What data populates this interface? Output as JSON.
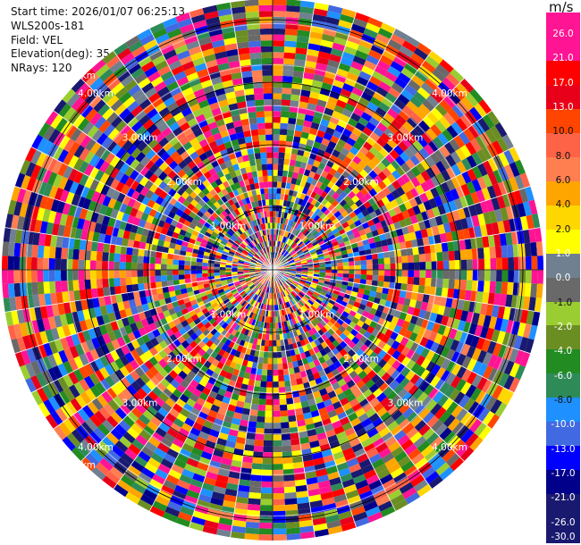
{
  "info": {
    "start_time": "Start time: 2026/01/07 06:25:13",
    "instrument": "WLS200s-181",
    "field": "Field: VEL",
    "elevation": "Elevation(deg): 35.00",
    "nrays": "NRays: 120"
  },
  "chart_data": {
    "type": "heatmap",
    "projection": "polar",
    "field": "VEL",
    "unit": "m/s",
    "n_rays": 120,
    "elevation_deg": 35.0,
    "range_ring_labels": [
      "1.00km",
      "2.00km",
      "3.00km",
      "4.00km",
      "5.00km"
    ],
    "colorbar": {
      "ticks": [
        "26.0",
        "21.0",
        "17.0",
        "13.0",
        "10.0",
        "8.0",
        "6.0",
        "4.0",
        "2.0",
        "1.0",
        "0.0",
        "-1.0",
        "-2.0",
        "-4.0",
        "-6.0",
        "-8.0",
        "-10.0",
        "-13.0",
        "-17.0",
        "-21.0",
        "-26.0",
        "-30.0"
      ],
      "colors": [
        "#ff1493",
        "#ff1493",
        "#ff0000",
        "#e8001a",
        "#ff4500",
        "#ff6347",
        "#ff7f50",
        "#ffa500",
        "#ffd700",
        "#ffff00",
        "#708090",
        "#696969",
        "#9acd32",
        "#6b8e23",
        "#228b22",
        "#2e8b57",
        "#1e90ff",
        "#4169e1",
        "#0000ff",
        "#00008b",
        "#191970",
        "#191970"
      ]
    }
  }
}
